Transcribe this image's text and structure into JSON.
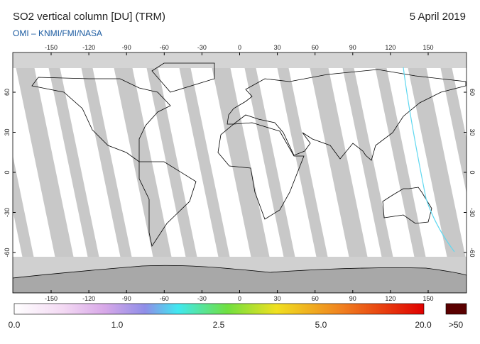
{
  "header": {
    "title": "SO2 vertical column [DU] (TRM)",
    "date": "5 April 2019",
    "subtitle": "OMI  –  KNMI/FMI/NASA"
  },
  "map": {
    "lon_ticks": [
      -150,
      -120,
      -90,
      -60,
      -30,
      0,
      30,
      60,
      90,
      120,
      150
    ],
    "lat_ticks": [
      60,
      30,
      0,
      -30,
      -60
    ]
  },
  "colorbar": {
    "labels": [
      "0.0",
      "1.0",
      "2.5",
      "5.0",
      "20.0"
    ],
    "over_label": ">50"
  }
}
